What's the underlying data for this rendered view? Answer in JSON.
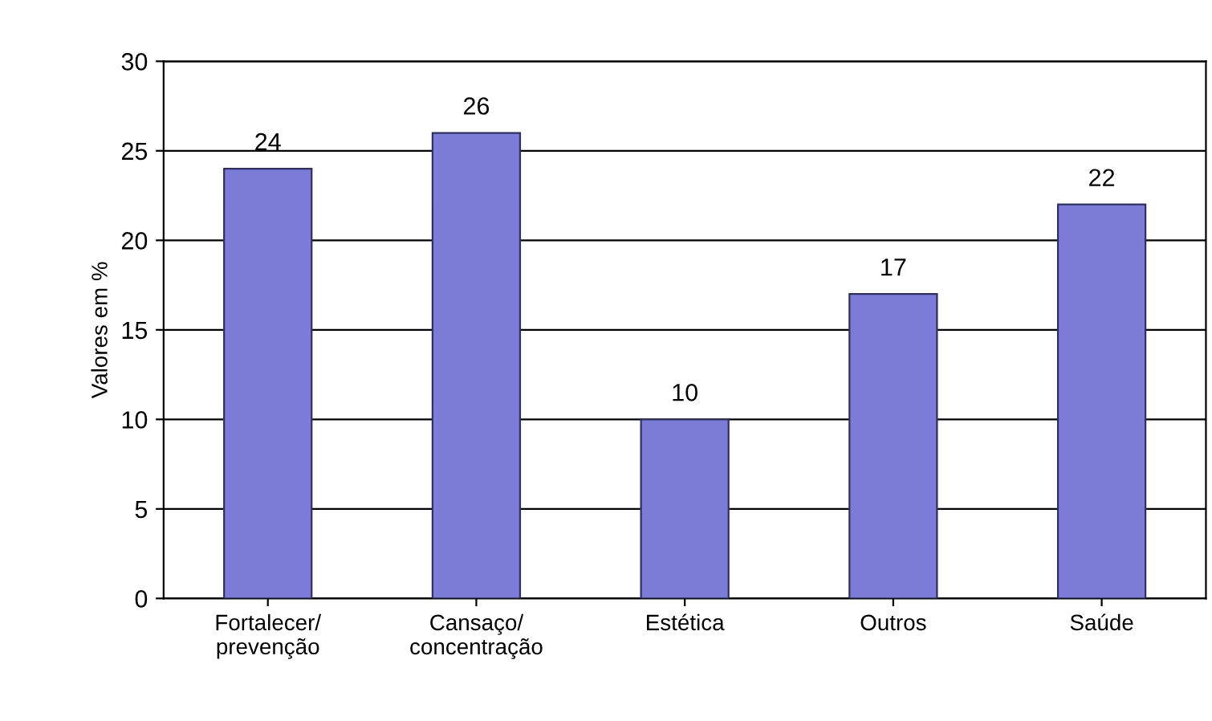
{
  "chart_data": {
    "type": "bar",
    "categories": [
      "Fortalecer/\nprevenção",
      "Cansaço/\nconcentração",
      "Estética",
      "Outros",
      "Saúde"
    ],
    "values": [
      24,
      26,
      10,
      17,
      22
    ],
    "color": "#7c7cd8",
    "ylabel": "Valores em %",
    "ylim": [
      0,
      30
    ],
    "yticks": [
      0,
      5,
      10,
      15,
      20,
      25,
      30
    ],
    "grid": "y",
    "data_labels": true
  }
}
